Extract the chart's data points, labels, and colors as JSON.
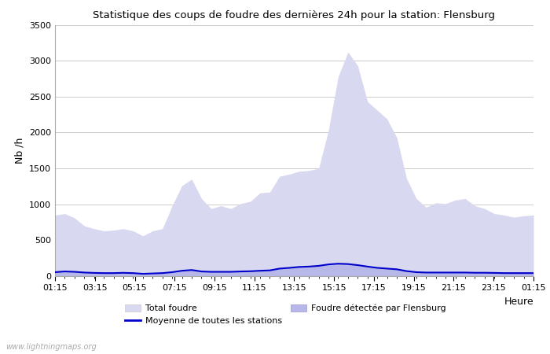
{
  "title": "Statistique des coups de foudre des dernières 24h pour la station: Flensburg",
  "xlabel": "Heure",
  "ylabel": "Nb /h",
  "ylim": [
    0,
    3500
  ],
  "yticks": [
    0,
    500,
    1000,
    1500,
    2000,
    2500,
    3000,
    3500
  ],
  "xtick_labels": [
    "01:15",
    "03:15",
    "05:15",
    "07:15",
    "09:15",
    "11:15",
    "13:15",
    "15:15",
    "17:15",
    "19:15",
    "21:15",
    "23:15",
    "01:15"
  ],
  "background_color": "#ffffff",
  "plot_bg_color": "#ffffff",
  "watermark": "www.lightningmaps.org",
  "total_foudre_color": "#d8d8f0",
  "flensburg_color": "#b8b8e8",
  "moyenne_color": "#0000cc",
  "total_foudre": [
    850,
    870,
    810,
    700,
    660,
    630,
    640,
    660,
    630,
    560,
    630,
    660,
    980,
    1260,
    1350,
    1080,
    940,
    980,
    940,
    1010,
    1040,
    1160,
    1170,
    1390,
    1420,
    1460,
    1470,
    1500,
    2030,
    2780,
    3120,
    2930,
    2430,
    2310,
    2190,
    1930,
    1360,
    1080,
    960,
    1020,
    1010,
    1060,
    1080,
    980,
    940,
    870,
    850,
    820,
    840,
    850
  ],
  "flensburg": [
    55,
    65,
    60,
    50,
    45,
    42,
    42,
    46,
    42,
    32,
    37,
    42,
    55,
    75,
    85,
    65,
    60,
    60,
    60,
    65,
    68,
    75,
    80,
    105,
    115,
    128,
    133,
    143,
    163,
    173,
    168,
    153,
    133,
    115,
    105,
    95,
    70,
    55,
    50,
    50,
    50,
    50,
    50,
    47,
    47,
    45,
    42,
    42,
    42,
    42
  ],
  "moyenne": [
    55,
    65,
    60,
    50,
    45,
    42,
    42,
    46,
    42,
    32,
    37,
    42,
    55,
    75,
    85,
    65,
    60,
    60,
    60,
    65,
    68,
    75,
    80,
    105,
    115,
    128,
    133,
    143,
    163,
    173,
    168,
    153,
    133,
    115,
    105,
    95,
    70,
    55,
    50,
    50,
    50,
    50,
    50,
    47,
    47,
    45,
    42,
    42,
    42,
    42
  ]
}
